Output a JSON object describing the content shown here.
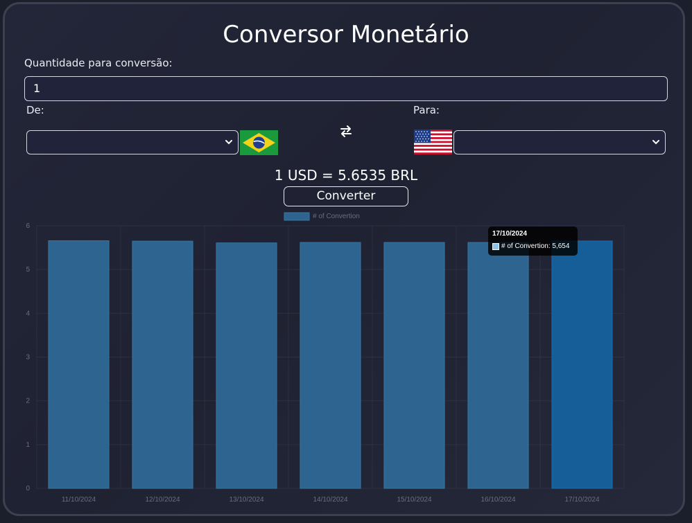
{
  "app": {
    "title": "Conversor Monetário"
  },
  "amount": {
    "label": "Quantidade para conversão:",
    "value": "1"
  },
  "from": {
    "label": "De:",
    "selected": "",
    "flag": "brazil-flag"
  },
  "to": {
    "label": "Para:",
    "selected": "",
    "flag": "usa-flag"
  },
  "swap_icon": "swap-arrows-icon",
  "result_text": "1 USD = 5.6535 BRL",
  "convert_button": "Converter",
  "colors": {
    "bar": "#2d6590",
    "bar_active": "#155e98",
    "background": "#1f2232"
  },
  "chart_data": {
    "type": "bar",
    "categories": [
      "11/10/2024",
      "12/10/2024",
      "13/10/2024",
      "14/10/2024",
      "15/10/2024",
      "16/10/2024",
      "17/10/2024"
    ],
    "series": [
      {
        "name": "# of Convertion",
        "values": [
          5.66,
          5.65,
          5.61,
          5.62,
          5.62,
          5.62,
          5.654
        ]
      }
    ],
    "y_ticks": [
      "0",
      "1",
      "2",
      "3",
      "4",
      "5",
      "6"
    ],
    "ylim": [
      0,
      6
    ],
    "legend": "top-center",
    "grid": true,
    "active_index": 6,
    "tooltip": {
      "title": "17/10/2024",
      "text": "# of Convertion: 5,654"
    }
  }
}
